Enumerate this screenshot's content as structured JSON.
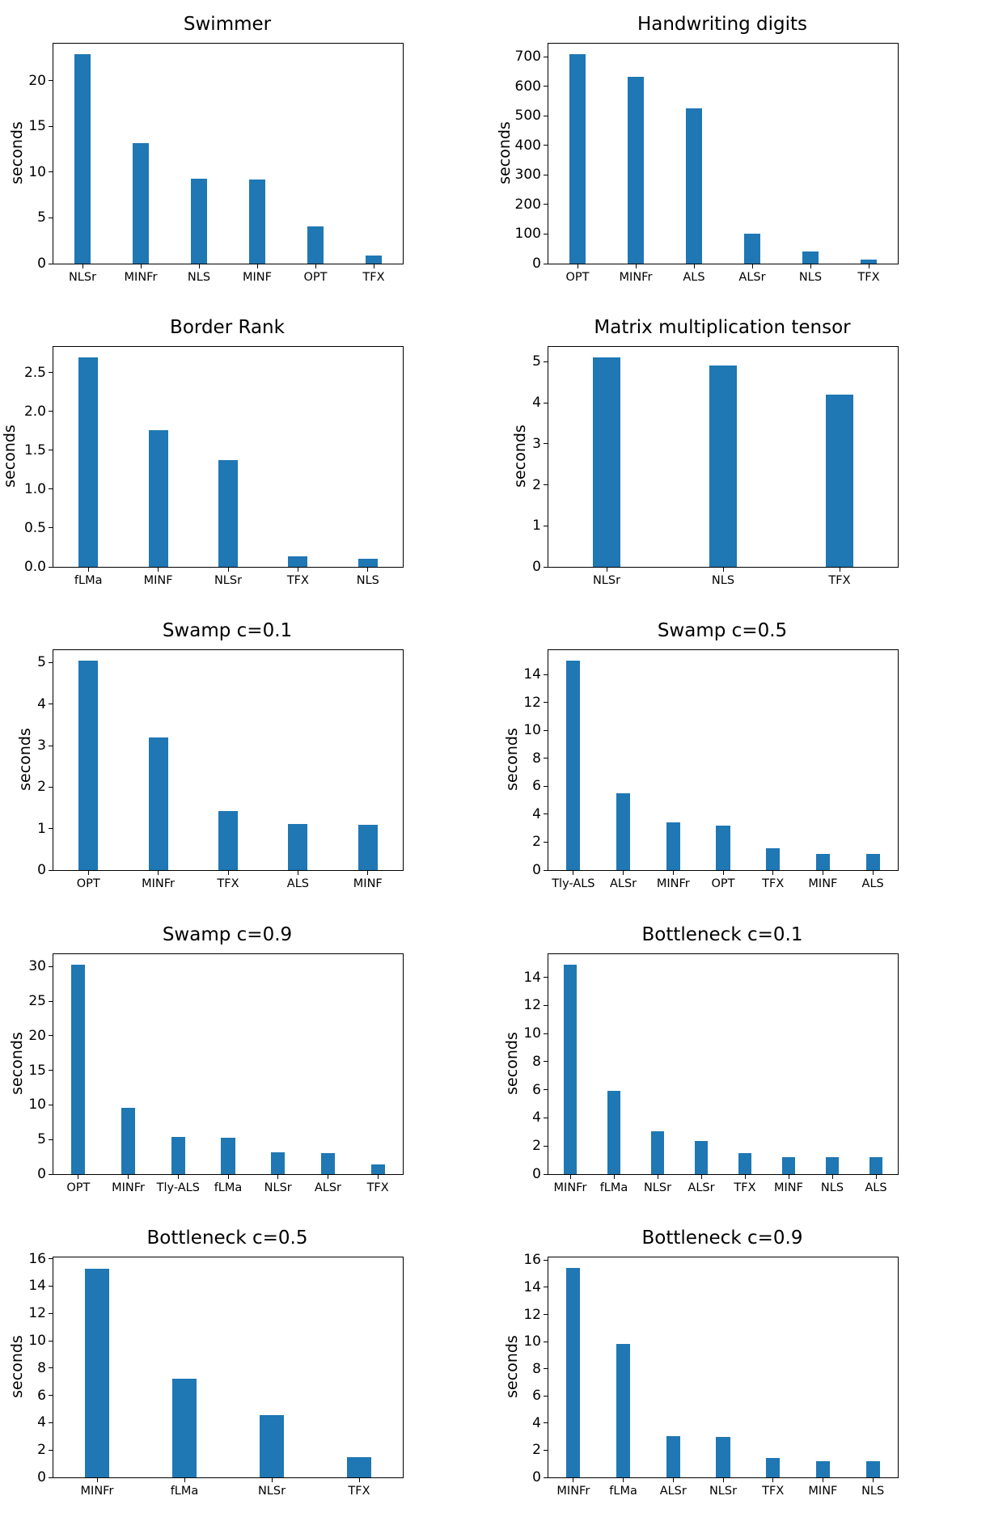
{
  "figure": {
    "bar_color": "#1f77b4",
    "axis_color": "#000000",
    "background_color": "#ffffff",
    "grid": false,
    "legend": false,
    "layout": "5 rows x 2 columns of bar subplots"
  },
  "chart_data": [
    {
      "type": "bar",
      "title": "Swimmer",
      "ylabel": "seconds",
      "xlabel": "",
      "categories": [
        "NLSr",
        "MINFr",
        "NLS",
        "MINF",
        "OPT",
        "TFX"
      ],
      "values": [
        22.9,
        13.2,
        9.3,
        9.2,
        4.1,
        0.9
      ],
      "yticks": [
        0,
        5,
        10,
        15,
        20
      ],
      "ytick_labels": [
        "0",
        "5",
        "10",
        "15",
        "20"
      ],
      "ylim": [
        0,
        24.05
      ]
    },
    {
      "type": "bar",
      "title": "Handwriting digits",
      "ylabel": "seconds",
      "xlabel": "",
      "categories": [
        "OPT",
        "MINFr",
        "ALS",
        "ALSr",
        "NLS",
        "TFX"
      ],
      "values": [
        710,
        632,
        525,
        102,
        42,
        15
      ],
      "yticks": [
        0,
        100,
        200,
        300,
        400,
        500,
        600,
        700
      ],
      "ytick_labels": [
        "0",
        "100",
        "200",
        "300",
        "400",
        "500",
        "600",
        "700"
      ],
      "ylim": [
        0,
        745
      ]
    },
    {
      "type": "bar",
      "title": "Border Rank",
      "ylabel": "seconds",
      "xlabel": "",
      "categories": [
        "fLMa",
        "MINF",
        "NLSr",
        "TFX",
        "NLS"
      ],
      "values": [
        2.69,
        1.76,
        1.37,
        0.14,
        0.1
      ],
      "yticks": [
        0,
        0.5,
        1.0,
        1.5,
        2.0,
        2.5
      ],
      "ytick_labels": [
        "0.0",
        "0.5",
        "1.0",
        "1.5",
        "2.0",
        "2.5"
      ],
      "ylim": [
        0,
        2.83
      ]
    },
    {
      "type": "bar",
      "title": "Matrix multiplication tensor",
      "ylabel": "seconds",
      "xlabel": "",
      "categories": [
        "NLSr",
        "NLS",
        "TFX"
      ],
      "values": [
        5.1,
        4.9,
        4.2
      ],
      "yticks": [
        0,
        1,
        2,
        3,
        4,
        5
      ],
      "ytick_labels": [
        "0",
        "1",
        "2",
        "3",
        "4",
        "5"
      ],
      "ylim": [
        0,
        5.36
      ]
    },
    {
      "type": "bar",
      "title": "Swamp c=0.1",
      "ylabel": "seconds",
      "xlabel": "",
      "categories": [
        "OPT",
        "MINFr",
        "TFX",
        "ALS",
        "MINF"
      ],
      "values": [
        5.05,
        3.2,
        1.42,
        1.12,
        1.1
      ],
      "yticks": [
        0,
        1,
        2,
        3,
        4,
        5
      ],
      "ytick_labels": [
        "0",
        "1",
        "2",
        "3",
        "4",
        "5"
      ],
      "ylim": [
        0,
        5.3
      ]
    },
    {
      "type": "bar",
      "title": "Swamp c=0.5",
      "ylabel": "seconds",
      "xlabel": "",
      "categories": [
        "Tly-ALS",
        "ALSr",
        "MINFr",
        "OPT",
        "TFX",
        "MINF",
        "ALS"
      ],
      "values": [
        15.0,
        5.5,
        3.4,
        3.2,
        1.55,
        1.15,
        1.15
      ],
      "yticks": [
        0,
        2,
        4,
        6,
        8,
        10,
        12,
        14
      ],
      "ytick_labels": [
        "0",
        "2",
        "4",
        "6",
        "8",
        "10",
        "12",
        "14"
      ],
      "ylim": [
        0,
        15.75
      ]
    },
    {
      "type": "bar",
      "title": "Swamp c=0.9",
      "ylabel": "seconds",
      "xlabel": "",
      "categories": [
        "OPT",
        "MINFr",
        "Tly-ALS",
        "fLMa",
        "NLSr",
        "ALSr",
        "TFX"
      ],
      "values": [
        30.3,
        9.6,
        5.4,
        5.3,
        3.2,
        3.0,
        1.4
      ],
      "yticks": [
        0,
        5,
        10,
        15,
        20,
        25,
        30
      ],
      "ytick_labels": [
        "0",
        "5",
        "10",
        "15",
        "20",
        "25",
        "30"
      ],
      "ylim": [
        0,
        31.8
      ]
    },
    {
      "type": "bar",
      "title": "Bottleneck c=0.1",
      "ylabel": "seconds",
      "xlabel": "",
      "categories": [
        "MINFr",
        "fLMa",
        "NLSr",
        "ALSr",
        "TFX",
        "MINF",
        "NLS",
        "ALS"
      ],
      "values": [
        14.9,
        5.9,
        3.05,
        2.35,
        1.5,
        1.2,
        1.2,
        1.2
      ],
      "yticks": [
        0,
        2,
        4,
        6,
        8,
        10,
        12,
        14
      ],
      "ytick_labels": [
        "0",
        "2",
        "4",
        "6",
        "8",
        "10",
        "12",
        "14"
      ],
      "ylim": [
        0,
        15.65
      ]
    },
    {
      "type": "bar",
      "title": "Bottleneck c=0.5",
      "ylabel": "seconds",
      "xlabel": "",
      "categories": [
        "MINFr",
        "fLMa",
        "NLSr",
        "TFX"
      ],
      "values": [
        15.3,
        7.2,
        4.55,
        1.5
      ],
      "yticks": [
        0,
        2,
        4,
        6,
        8,
        10,
        12,
        14,
        16
      ],
      "ytick_labels": [
        "0",
        "2",
        "4",
        "6",
        "8",
        "10",
        "12",
        "14",
        "16"
      ],
      "ylim": [
        0,
        16.1
      ]
    },
    {
      "type": "bar",
      "title": "Bottleneck c=0.9",
      "ylabel": "seconds",
      "xlabel": "",
      "categories": [
        "MINFr",
        "fLMa",
        "ALSr",
        "NLSr",
        "TFX",
        "MINF",
        "NLS"
      ],
      "values": [
        15.4,
        9.8,
        3.05,
        3.0,
        1.45,
        1.2,
        1.2
      ],
      "yticks": [
        0,
        2,
        4,
        6,
        8,
        10,
        12,
        14,
        16
      ],
      "ytick_labels": [
        "0",
        "2",
        "4",
        "6",
        "8",
        "10",
        "12",
        "14",
        "16"
      ],
      "ylim": [
        0,
        16.2
      ]
    }
  ]
}
